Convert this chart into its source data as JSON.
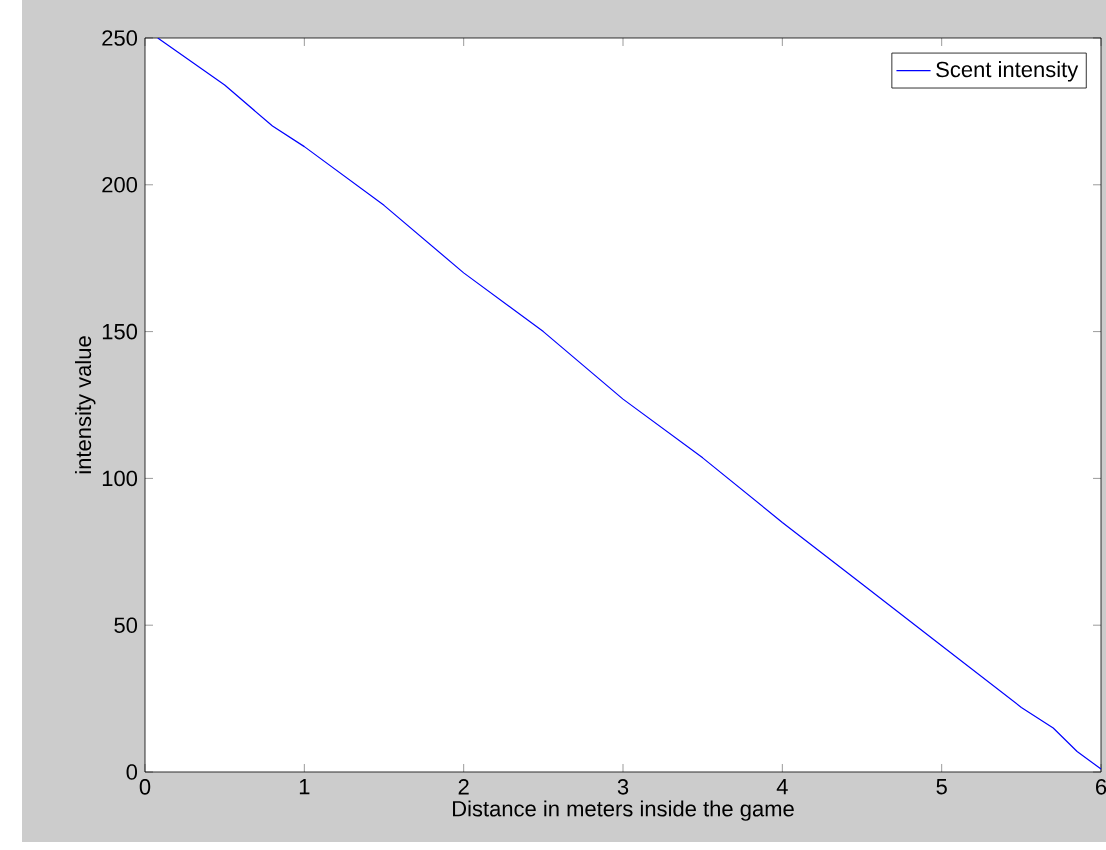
{
  "chart_data": {
    "type": "line",
    "xlabel": "Distance in meters inside the game",
    "ylabel": "intensity value",
    "x": [
      0.08,
      0.5,
      0.8,
      1.0,
      1.5,
      2.0,
      2.5,
      3.0,
      3.5,
      4.0,
      4.5,
      5.0,
      5.5,
      5.7,
      5.85,
      6.0
    ],
    "series": [
      {
        "name": "Scent intensity",
        "color": "#0000ff",
        "values": [
          250,
          234,
          220,
          213,
          193,
          170,
          150,
          127,
          107,
          85,
          64,
          43,
          22,
          15,
          7,
          1
        ]
      }
    ],
    "xlim": [
      0,
      6
    ],
    "ylim": [
      0,
      250
    ],
    "xticks": [
      0,
      1,
      2,
      3,
      4,
      5,
      6
    ],
    "yticks": [
      0,
      50,
      100,
      150,
      200,
      250
    ],
    "grid": false,
    "legend": "top right",
    "marker": "none",
    "line_style": "solid"
  }
}
